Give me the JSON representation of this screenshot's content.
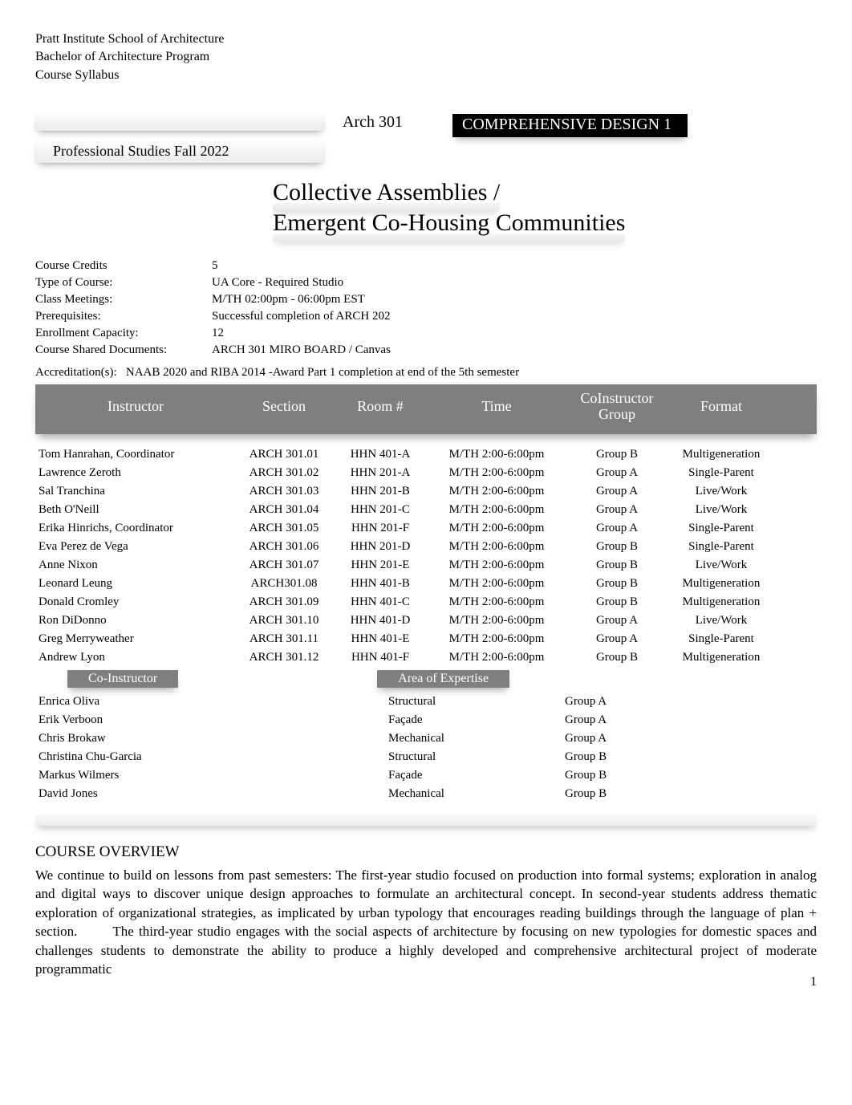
{
  "colors": {
    "text": "#000000",
    "background": "#ffffff",
    "bar_gray": "#7f7f7f",
    "bar_text": "#ffffff",
    "glow_light": "#f6f6f6",
    "glow_dark": "#e8e8e8"
  },
  "typography": {
    "body_family": "Times New Roman, Georgia, serif",
    "header_fontsize": 16,
    "course_code_fontsize": 20,
    "black_label_fontsize": 20,
    "prof_studies_fontsize": 18,
    "subtitle_fontsize": 30,
    "info_fontsize": 15,
    "table_header_fontsize": 18,
    "table_row_fontsize": 15,
    "overview_heading_fontsize": 19,
    "overview_body_fontsize": 17
  },
  "header": {
    "line1": "Pratt Institute School of Architecture",
    "line2": "Bachelor of Architecture Program",
    "line3": "Course Syllabus"
  },
  "course_code": "Arch 301",
  "black_label": "COMPREHENSIVE DESIGN 1",
  "prof_studies": "Professional Studies Fall 2022",
  "subtitle": {
    "line1": "Collective Assemblies /",
    "line2": "Emergent Co-Housing Communities"
  },
  "info": {
    "credits_label": "Course Credits",
    "credits_value": "5",
    "type_label": "Type of Course:",
    "type_value": "UA Core - Required Studio",
    "meetings_label": "Class Meetings:",
    "meetings_value": "M/TH 02:00pm - 06:00pm EST",
    "prereq_label": "Prerequisites:",
    "prereq_value": "Successful completion of ARCH 202",
    "enrollment_label": "Enrollment Capacity:",
    "enrollment_value": "12",
    "docs_label": "Course Shared Documents:",
    "docs_value": "ARCH 301 MIRO BOARD / Canvas",
    "accreditation_label": "Accreditation(s):",
    "accreditation_value": "NAAB 2020 and RIBA 2014 -Award Part 1 completion at end of the 5th semester"
  },
  "table_headers": {
    "instructor": "Instructor",
    "section": "Section",
    "room": "Room #",
    "time": "Time",
    "group_line1": "CoInstructor",
    "group_line2": "Group",
    "format": "Format"
  },
  "instructors": [
    {
      "name": "Tom Hanrahan, Coordinator",
      "section": "ARCH 301.01",
      "room": "HHN 401-A",
      "time": "M/TH 2:00-6:00pm",
      "group": "Group B",
      "format": "Multigeneration"
    },
    {
      "name": "Lawrence Zeroth",
      "section": "ARCH 301.02",
      "room": "HHN 201-A",
      "time": "M/TH 2:00-6:00pm",
      "group": "Group A",
      "format": "Single-Parent"
    },
    {
      "name": "Sal Tranchina",
      "section": "ARCH 301.03",
      "room": "HHN 201-B",
      "time": "M/TH 2:00-6:00pm",
      "group": "Group A",
      "format": "Live/Work"
    },
    {
      "name": "Beth O'Neill",
      "section": "ARCH 301.04",
      "room": "HHN 201-C",
      "time": "M/TH 2:00-6:00pm",
      "group": "Group A",
      "format": "Live/Work"
    },
    {
      "name": "Erika Hinrichs, Coordinator",
      "section": "ARCH 301.05",
      "room": "HHN 201-F",
      "time": "M/TH 2:00-6:00pm",
      "group": "Group A",
      "format": "Single-Parent"
    },
    {
      "name": "Eva Perez de Vega",
      "section": "ARCH 301.06",
      "room": "HHN 201-D",
      "time": "M/TH 2:00-6:00pm",
      "group": "Group B",
      "format": "Single-Parent"
    },
    {
      "name": "Anne Nixon",
      "section": "ARCH 301.07",
      "room": "HHN 201-E",
      "time": "M/TH 2:00-6:00pm",
      "group": "Group B",
      "format": "Live/Work"
    },
    {
      "name": "Leonard Leung",
      "section": "ARCH301.08",
      "room": "HHN 401-B",
      "time": "M/TH 2:00-6:00pm",
      "group": "Group B",
      "format": "Multigeneration"
    },
    {
      "name": "Donald Cromley",
      "section": "ARCH 301.09",
      "room": "HHN 401-C",
      "time": "M/TH 2:00-6:00pm",
      "group": "Group B",
      "format": "Multigeneration"
    },
    {
      "name": "Ron DiDonno",
      "section": "ARCH 301.10",
      "room": "HHN 401-D",
      "time": "M/TH 2:00-6:00pm",
      "group": "Group A",
      "format": "Live/Work"
    },
    {
      "name": "Greg Merryweather",
      "section": "ARCH 301.11",
      "room": "HHN 401-E",
      "time": "M/TH 2:00-6:00pm",
      "group": "Group A",
      "format": "Single-Parent"
    },
    {
      "name": "Andrew Lyon",
      "section": "ARCH 301.12",
      "room": "HHN 401-F",
      "time": "M/TH 2:00-6:00pm",
      "group": "Group B",
      "format": "Multigeneration"
    }
  ],
  "subheaders": {
    "coinstructor": "Co-Instructor",
    "area": "Area of Expertise"
  },
  "coinstructors": [
    {
      "name": "Enrica Oliva",
      "area": "Structural",
      "group": "Group A"
    },
    {
      "name": "Erik Verboon",
      "area": "Façade",
      "group": "Group A"
    },
    {
      "name": "Chris Brokaw",
      "area": "Mechanical",
      "group": "Group A"
    },
    {
      "name": "Christina Chu-Garcia",
      "area": "Structural",
      "group": "Group B"
    },
    {
      "name": "Markus Wilmers",
      "area": "Façade",
      "group": "Group B"
    },
    {
      "name": "David Jones",
      "area": "Mechanical",
      "group": "Group B"
    }
  ],
  "overview": {
    "heading": "COURSE OVERVIEW",
    "body_a": "We continue to build on lessons from past semesters: The first-year studio focused on production into formal systems; exploration in analog and digital ways to discover unique design approaches to formulate an architectural concept. In second-year students address thematic exploration of organizational strategies, as implicated by urban typology that encourages reading buildings through the language of plan + section.",
    "body_b": "The third-year studio engages with the social aspects of architecture by focusing on new typologies for domestic spaces and challenges students to demonstrate the ability to produce a highly developed and comprehensive architectural project of moderate programmatic"
  },
  "page_number": "1"
}
